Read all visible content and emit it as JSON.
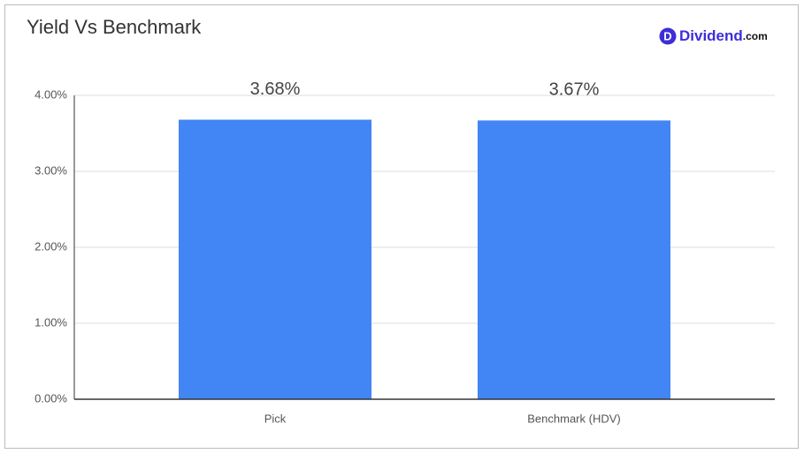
{
  "chart_data": {
    "type": "bar",
    "title": "Yield Vs Benchmark",
    "categories": [
      "Pick",
      "Benchmark (HDV)"
    ],
    "values": [
      3.68,
      3.67
    ],
    "value_labels": [
      "3.68%",
      "3.67%"
    ],
    "color": "#4285f4",
    "ylim": [
      0,
      4
    ],
    "yticks": [
      {
        "value": 0,
        "label": "0.00%"
      },
      {
        "value": 1,
        "label": "1.00%"
      },
      {
        "value": 2,
        "label": "2.00%"
      },
      {
        "value": 3,
        "label": "3.00%"
      },
      {
        "value": 4,
        "label": "4.00%"
      }
    ],
    "grid": true
  },
  "brand": {
    "icon": "D",
    "name": "Dividend",
    "suffix": ".com"
  }
}
